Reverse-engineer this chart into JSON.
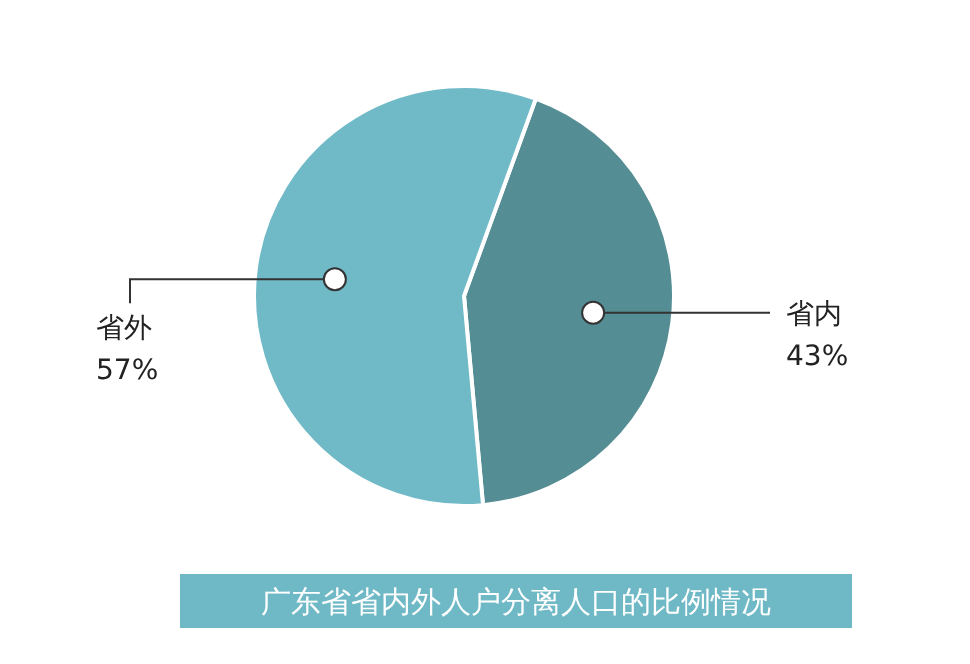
{
  "chart_data": {
    "type": "pie",
    "title": "广东省省内外人户分离人口的比例情况",
    "categories": [
      "省内",
      "省外"
    ],
    "values": [
      43,
      57
    ],
    "colors": [
      "#548d93",
      "#70bac7"
    ],
    "value_labels": [
      "43%",
      "57%"
    ]
  }
}
